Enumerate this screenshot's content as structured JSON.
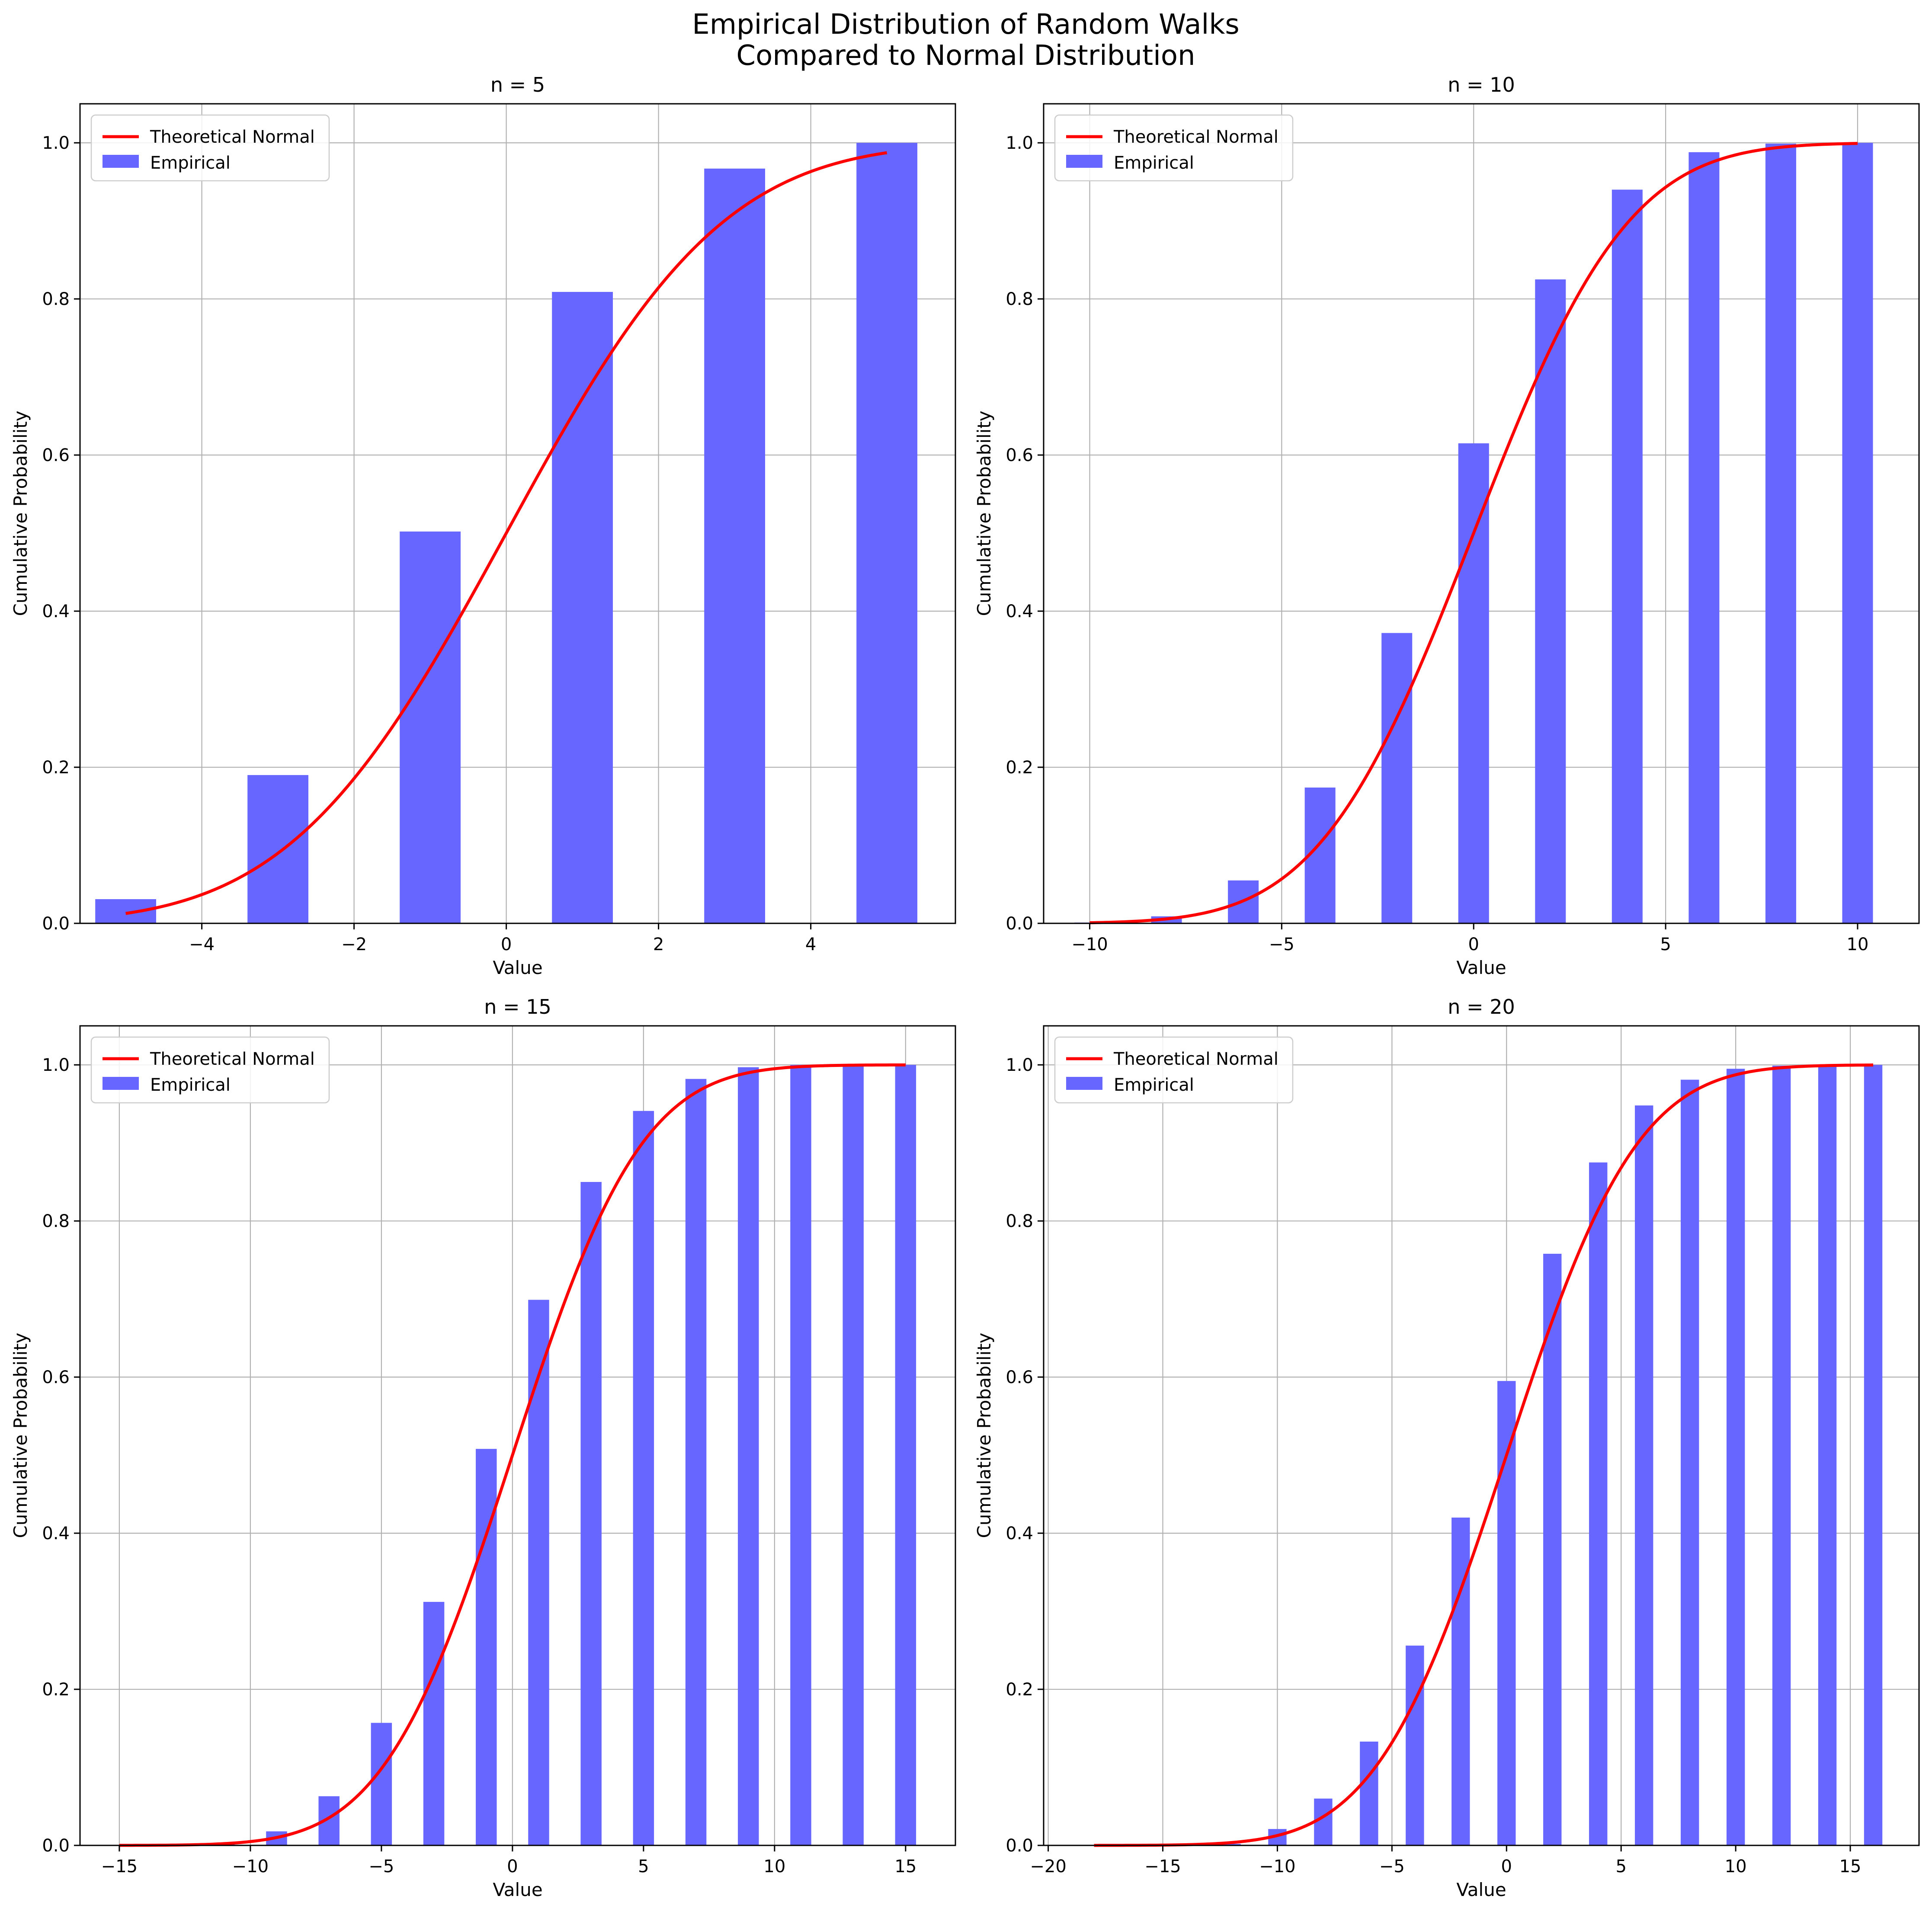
{
  "figure": {
    "title_line1": "Empirical Distribution of Random Walks",
    "title_line2": "Compared to Normal Distribution"
  },
  "colors": {
    "bar": "#6767FF",
    "line": "#FF0000",
    "grid": "#b0b0b0"
  },
  "chart_data": [
    {
      "type": "bar",
      "title": "n = 5",
      "n": 5,
      "xlabel": "Value",
      "ylabel": "Cumulative Probability",
      "xlim": [
        -5.6,
        5.9
      ],
      "ylim": [
        0,
        1.05
      ],
      "xticks": [
        -4,
        -2,
        0,
        2,
        4
      ],
      "yticks": [
        0.0,
        0.2,
        0.4,
        0.6,
        0.8,
        1.0
      ],
      "grid": true,
      "legend_position": "upper-left",
      "legend": [
        "Theoretical Normal",
        "Empirical"
      ],
      "bar_width": 0.8,
      "series": [
        {
          "name": "Empirical",
          "kind": "bar",
          "x": [
            -5,
            -3,
            -1,
            1,
            3,
            5
          ],
          "values": [
            0.031,
            0.19,
            0.502,
            0.809,
            0.967,
            1.0
          ]
        },
        {
          "name": "Theoretical Normal",
          "kind": "line",
          "x_range": [
            -5,
            5
          ],
          "mean": 0,
          "std": 2.236
        }
      ]
    },
    {
      "type": "bar",
      "title": "n = 10",
      "n": 10,
      "xlabel": "Value",
      "ylabel": "Cumulative Probability",
      "xlim": [
        -11.2,
        11.6
      ],
      "ylim": [
        0,
        1.05
      ],
      "xticks": [
        -10,
        -5,
        0,
        5,
        10
      ],
      "yticks": [
        0.0,
        0.2,
        0.4,
        0.6,
        0.8,
        1.0
      ],
      "grid": true,
      "legend_position": "upper-left",
      "legend": [
        "Theoretical Normal",
        "Empirical"
      ],
      "bar_width": 0.8,
      "series": [
        {
          "name": "Empirical",
          "kind": "bar",
          "x": [
            -10,
            -8,
            -6,
            -4,
            -2,
            0,
            2,
            4,
            6,
            8,
            10
          ],
          "values": [
            0.001,
            0.009,
            0.055,
            0.174,
            0.372,
            0.615,
            0.825,
            0.94,
            0.988,
            0.999,
            1.0
          ]
        },
        {
          "name": "Theoretical Normal",
          "kind": "line",
          "x_range": [
            -10,
            10
          ],
          "mean": 0,
          "std": 3.162
        }
      ]
    },
    {
      "type": "bar",
      "title": "n = 15",
      "n": 15,
      "xlabel": "Value",
      "ylabel": "Cumulative Probability",
      "xlim": [
        -16.5,
        16.9
      ],
      "ylim": [
        0,
        1.05
      ],
      "xticks": [
        -15,
        -10,
        -5,
        0,
        5,
        10,
        15
      ],
      "yticks": [
        0.0,
        0.2,
        0.4,
        0.6,
        0.8,
        1.0
      ],
      "grid": true,
      "legend_position": "upper-left",
      "legend": [
        "Theoretical Normal",
        "Empirical"
      ],
      "bar_width": 0.8,
      "series": [
        {
          "name": "Empirical",
          "kind": "bar",
          "x": [
            -15,
            -13,
            -11,
            -9,
            -7,
            -5,
            -3,
            -1,
            1,
            3,
            5,
            7,
            9,
            11,
            13,
            15
          ],
          "values": [
            0.0,
            0.0,
            0.002,
            0.018,
            0.063,
            0.157,
            0.312,
            0.508,
            0.699,
            0.85,
            0.941,
            0.982,
            0.997,
            1.0,
            1.0,
            1.0
          ]
        },
        {
          "name": "Theoretical Normal",
          "kind": "line",
          "x_range": [
            -15,
            15
          ],
          "mean": 0,
          "std": 3.873
        }
      ]
    },
    {
      "type": "bar",
      "title": "n = 20",
      "n": 20,
      "xlabel": "Value",
      "ylabel": "Cumulative Probability",
      "xlim": [
        -20.2,
        18.0
      ],
      "ylim": [
        0,
        1.05
      ],
      "xticks": [
        -20,
        -15,
        -10,
        -5,
        0,
        5,
        10,
        15
      ],
      "yticks": [
        0.0,
        0.2,
        0.4,
        0.6,
        0.8,
        1.0
      ],
      "grid": true,
      "legend_position": "upper-left",
      "legend": [
        "Theoretical Normal",
        "Empirical"
      ],
      "bar_width": 0.8,
      "series": [
        {
          "name": "Empirical",
          "kind": "bar",
          "x": [
            -18,
            -16,
            -14,
            -12,
            -10,
            -8,
            -6,
            -4,
            -2,
            0,
            2,
            4,
            6,
            8,
            10,
            12,
            14,
            16
          ],
          "values": [
            0.0,
            0.0,
            0.0,
            0.002,
            0.021,
            0.06,
            0.133,
            0.256,
            0.42,
            0.595,
            0.758,
            0.875,
            0.948,
            0.981,
            0.995,
            0.999,
            1.0,
            1.0
          ]
        },
        {
          "name": "Theoretical Normal",
          "kind": "line",
          "x_range": [
            -18,
            16
          ],
          "mean": 0,
          "std": 4.472
        }
      ]
    }
  ]
}
